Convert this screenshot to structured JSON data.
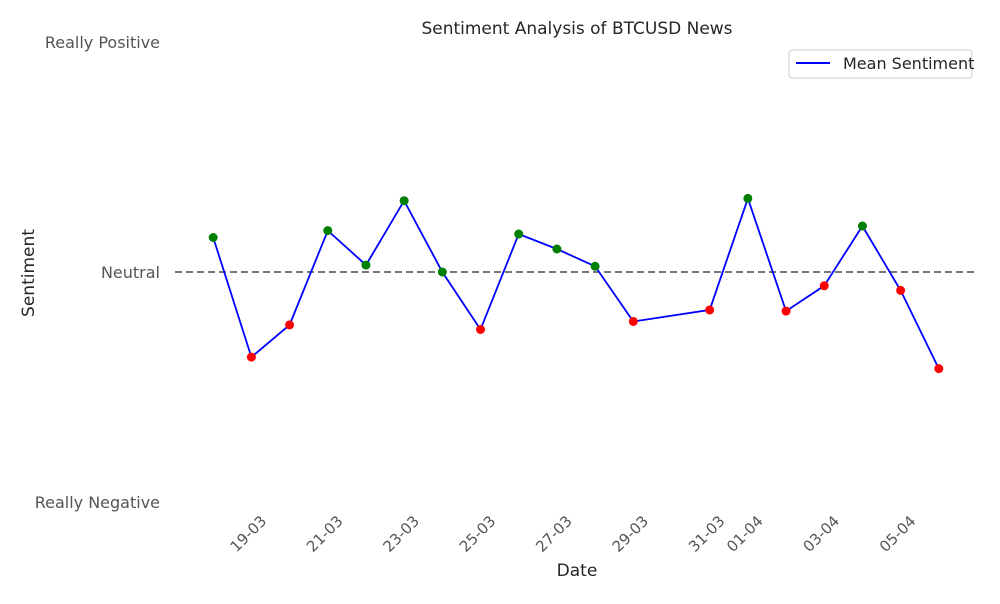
{
  "chart_data": {
    "type": "line",
    "title": "Sentiment Analysis of BTCUSD News",
    "xlabel": "Date",
    "ylabel": "Sentiment",
    "yticks": [
      {
        "value": 1,
        "label": "Really Positive"
      },
      {
        "value": 0,
        "label": "Neutral"
      },
      {
        "value": -1,
        "label": "Really Negative"
      }
    ],
    "ylim": [
      -1,
      1
    ],
    "xlim": [
      "2025-03-17",
      "2025-04-07"
    ],
    "xticks": [
      {
        "date": "2025-03-19",
        "label": "19-03"
      },
      {
        "date": "2025-03-21",
        "label": "21-03"
      },
      {
        "date": "2025-03-23",
        "label": "23-03"
      },
      {
        "date": "2025-03-25",
        "label": "25-03"
      },
      {
        "date": "2025-03-27",
        "label": "27-03"
      },
      {
        "date": "2025-03-29",
        "label": "29-03"
      },
      {
        "date": "2025-03-31",
        "label": "31-03"
      },
      {
        "date": "2025-04-01",
        "label": "01-04"
      },
      {
        "date": "2025-04-03",
        "label": "03-04"
      },
      {
        "date": "2025-04-05",
        "label": "05-04"
      }
    ],
    "grid": false,
    "legend": {
      "position": "top-right"
    },
    "reference_line": {
      "y": 0,
      "style": "dashed",
      "color": "#777777"
    },
    "colors": {
      "line": "#0000ff",
      "positive": "#008000",
      "negative": "#ff0000"
    },
    "series": [
      {
        "name": "Mean Sentiment",
        "points": [
          {
            "date": "2025-03-18",
            "value": 0.15
          },
          {
            "date": "2025-03-19",
            "value": -0.37
          },
          {
            "date": "2025-03-20",
            "value": -0.23
          },
          {
            "date": "2025-03-21",
            "value": 0.18
          },
          {
            "date": "2025-03-22",
            "value": 0.03
          },
          {
            "date": "2025-03-23",
            "value": 0.31
          },
          {
            "date": "2025-03-24",
            "value": 0.0
          },
          {
            "date": "2025-03-25",
            "value": -0.25
          },
          {
            "date": "2025-03-26",
            "value": 0.165
          },
          {
            "date": "2025-03-27",
            "value": 0.1
          },
          {
            "date": "2025-03-28",
            "value": 0.025
          },
          {
            "date": "2025-03-29",
            "value": -0.215
          },
          {
            "date": "2025-03-31",
            "value": -0.165
          },
          {
            "date": "2025-04-01",
            "value": 0.32
          },
          {
            "date": "2025-04-02",
            "value": -0.17
          },
          {
            "date": "2025-04-03",
            "value": -0.06
          },
          {
            "date": "2025-04-04",
            "value": 0.2
          },
          {
            "date": "2025-04-05",
            "value": -0.08
          },
          {
            "date": "2025-04-06",
            "value": -0.42
          }
        ]
      }
    ]
  }
}
